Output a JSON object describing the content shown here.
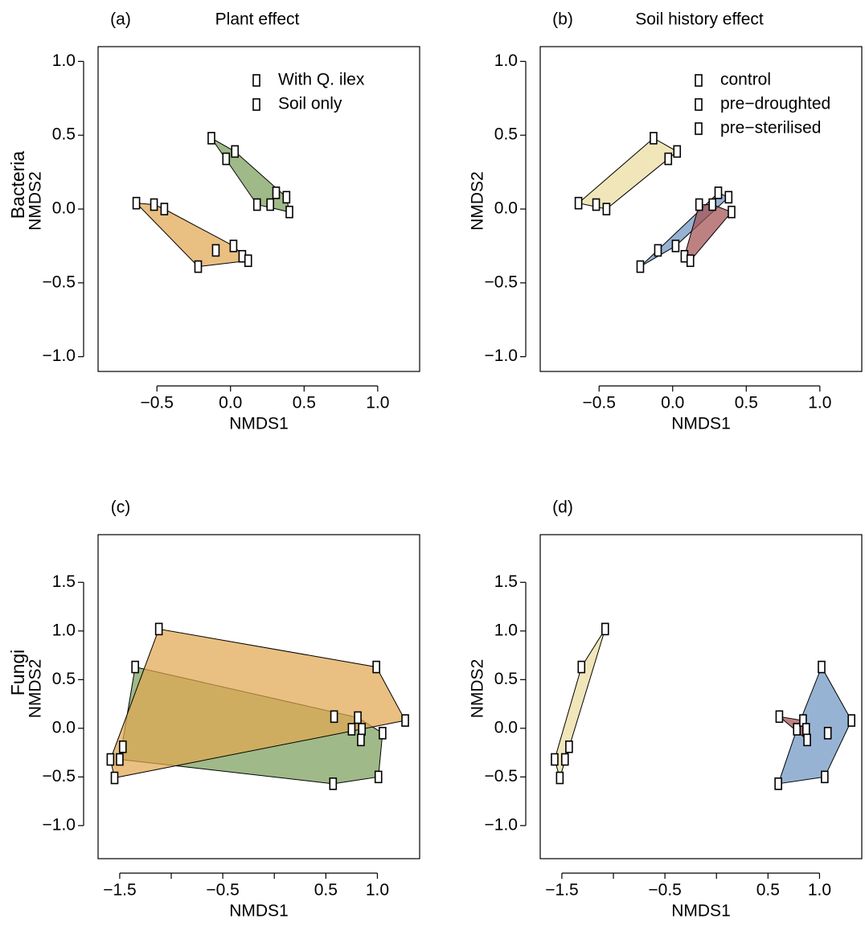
{
  "chart_data": [
    {
      "type": "scatter",
      "panel_label": "(a)",
      "title": "Plant effect",
      "row_label": "Bacteria",
      "x_label": "NMDS1",
      "y_label": "NMDS2",
      "xlim": [
        -0.9,
        1.285
      ],
      "ylim": [
        -1.1,
        1.1
      ],
      "xticks": [
        {
          "value": -0.5,
          "label": "−0.5"
        },
        {
          "value": 0,
          "label": "0.0"
        },
        0.5,
        {
          "value": 1,
          "label": "1.0"
        }
      ],
      "yticks": [
        {
          "value": -1,
          "label": "−1.0"
        },
        {
          "value": -0.5,
          "label": "−0.5"
        },
        {
          "value": 0,
          "label": "0.0"
        },
        0.5,
        {
          "value": 1,
          "label": "1.0"
        }
      ],
      "legend": "top-right",
      "series": [
        {
          "name": "With Q. ilex",
          "color": "#7a9e5a",
          "x": [
            -0.13,
            0.03,
            -0.03,
            0.31,
            0.38,
            0.27,
            0.18,
            0.4
          ],
          "y": [
            0.48,
            0.39,
            0.34,
            0.11,
            0.08,
            0.03,
            0.03,
            -0.02
          ]
        },
        {
          "name": "Soil only",
          "color": "#e0a850",
          "x": [
            -0.64,
            -0.52,
            -0.45,
            0.02,
            -0.1,
            0.08,
            0.12,
            -0.22
          ],
          "y": [
            0.04,
            0.03,
            0.0,
            -0.25,
            -0.28,
            -0.32,
            -0.35,
            -0.39
          ]
        }
      ]
    },
    {
      "type": "scatter",
      "panel_label": "(b)",
      "title": "Soil history effect",
      "x_label": "NMDS1",
      "y_label": "NMDS2",
      "xlim": [
        -0.9,
        1.285
      ],
      "ylim": [
        -1.1,
        1.1
      ],
      "xticks": [
        {
          "value": -0.5,
          "label": "−0.5"
        },
        {
          "value": 0,
          "label": "0.0"
        },
        0.5,
        {
          "value": 1,
          "label": "1.0"
        }
      ],
      "yticks": [
        {
          "value": -1,
          "label": "−1.0"
        },
        {
          "value": -0.5,
          "label": "−0.5"
        },
        {
          "value": 0,
          "label": "0.0"
        },
        0.5,
        {
          "value": 1,
          "label": "1.0"
        }
      ],
      "legend": "top-right",
      "series": [
        {
          "name": "control",
          "color": "#ecdca0",
          "x": [
            -0.64,
            -0.52,
            -0.45,
            -0.13,
            0.03,
            -0.03
          ],
          "y": [
            0.04,
            0.03,
            0.0,
            0.48,
            0.39,
            0.34
          ]
        },
        {
          "name": "pre−droughted",
          "color": "#6f96c4",
          "x": [
            -0.22,
            -0.1,
            0.02,
            0.31,
            0.38
          ],
          "y": [
            -0.39,
            -0.28,
            -0.25,
            0.11,
            0.08
          ]
        },
        {
          "name": "pre−sterilised",
          "color": "#a35050",
          "x": [
            0.08,
            0.12,
            0.18,
            0.27,
            0.4
          ],
          "y": [
            -0.32,
            -0.35,
            0.03,
            0.03,
            -0.02
          ]
        }
      ]
    },
    {
      "type": "scatter",
      "panel_label": "(c)",
      "row_label": "Fungi",
      "x_label": "NMDS1",
      "y_label": "NMDS2",
      "xlim": [
        -1.71,
        1.41
      ],
      "ylim": [
        -1.34,
        1.99
      ],
      "xticks": [
        {
          "value": -1.5,
          "label": "−1.5"
        },
        {
          "value": -0.5,
          "label": "−0.5"
        },
        0.5,
        {
          "value": 1,
          "label": "1.0"
        }
      ],
      "xticks_minor": [
        -1,
        0
      ],
      "yticks": [
        {
          "value": -1,
          "label": "−1.0"
        },
        {
          "value": -0.5,
          "label": "−0.5"
        },
        {
          "value": 0,
          "label": "0.0"
        },
        0.5,
        {
          "value": 1,
          "label": "1.0"
        },
        1.5
      ],
      "series": [
        {
          "color": "#7a9e5a",
          "x": [
            -1.35,
            0.85,
            0.84,
            1.05,
            1.01,
            0.57,
            -1.5,
            0.81
          ],
          "y": [
            0.63,
            -0.01,
            -0.12,
            -0.05,
            -0.5,
            -0.57,
            -0.32,
            0.11
          ]
        },
        {
          "color": "#e0a850",
          "x": [
            -1.12,
            0.99,
            1.27,
            0.58,
            0.75,
            -1.55,
            -1.59,
            -1.47
          ],
          "y": [
            1.02,
            0.63,
            0.08,
            0.12,
            -0.01,
            -0.51,
            -0.32,
            -0.19
          ]
        }
      ]
    },
    {
      "type": "scatter",
      "panel_label": "(d)",
      "x_label": "NMDS1",
      "y_label": "NMDS2",
      "xlim": [
        -1.71,
        1.41
      ],
      "ylim": [
        -1.34,
        1.99
      ],
      "xticks": [
        {
          "value": -1.5,
          "label": "−1.5"
        },
        {
          "value": -0.5,
          "label": "−0.5"
        },
        0.5,
        {
          "value": 1,
          "label": "1.0"
        }
      ],
      "xticks_minor": [
        -1,
        0
      ],
      "yticks": [
        {
          "value": -1,
          "label": "−1.0"
        },
        {
          "value": -0.5,
          "label": "−0.5"
        },
        {
          "value": 0,
          "label": "0.0"
        },
        0.5,
        {
          "value": 1,
          "label": "1.0"
        },
        1.5
      ],
      "series": [
        {
          "color": "#ecdca0",
          "x": [
            -1.08,
            -1.31,
            -1.43,
            -1.47,
            -1.57,
            -1.52
          ],
          "y": [
            1.02,
            0.63,
            -0.19,
            -0.32,
            -0.32,
            -0.51
          ]
        },
        {
          "color": "#6f96c4",
          "x": [
            1.02,
            1.31,
            1.08,
            1.05,
            0.6,
            0.78
          ],
          "y": [
            0.63,
            0.08,
            -0.05,
            -0.5,
            -0.57,
            -0.01
          ]
        },
        {
          "color": "#a35050",
          "x": [
            0.61,
            0.84,
            0.87,
            0.88
          ],
          "y": [
            0.12,
            0.08,
            -0.01,
            -0.12
          ]
        }
      ]
    }
  ]
}
